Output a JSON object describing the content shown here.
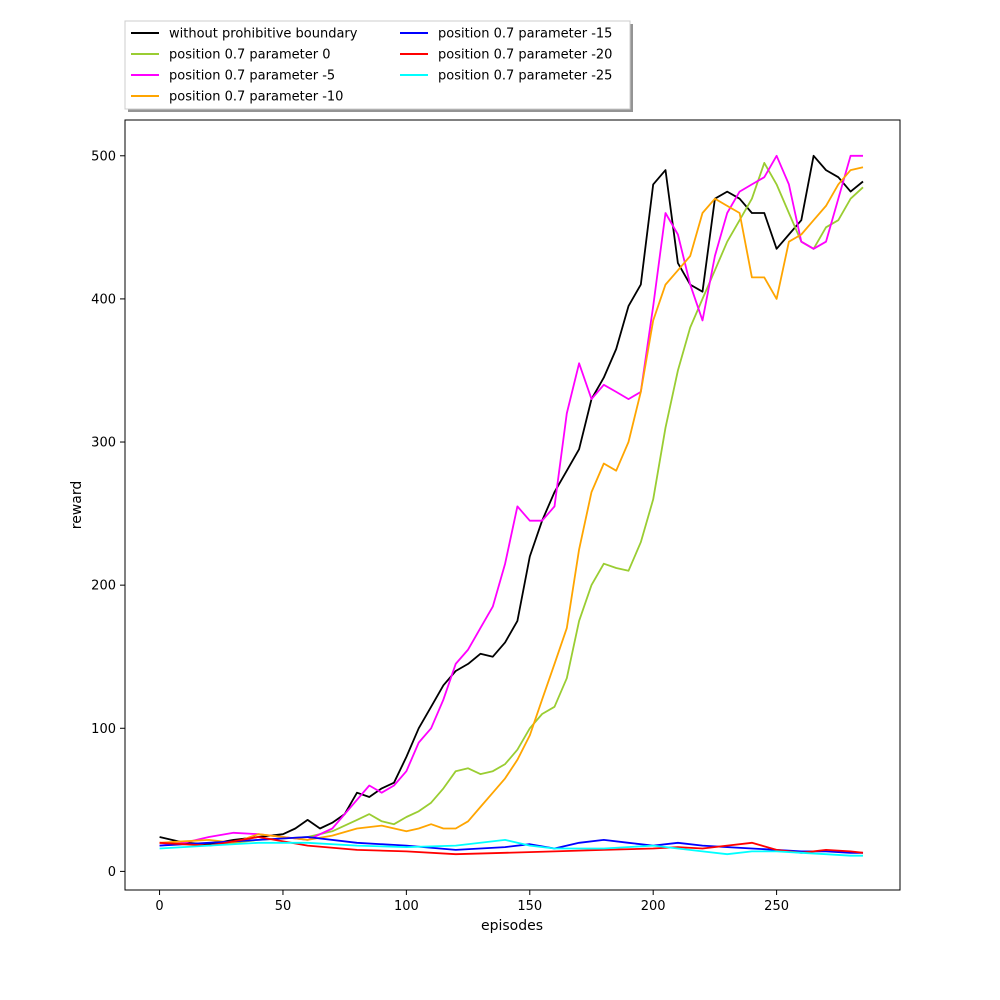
{
  "chart_data": {
    "type": "line",
    "title": "",
    "xlabel": "episodes",
    "ylabel": "reward",
    "xlim": [
      -14,
      300
    ],
    "ylim": [
      -13,
      525
    ],
    "xticks": [
      0,
      50,
      100,
      150,
      200,
      250
    ],
    "yticks": [
      0,
      100,
      200,
      300,
      400,
      500
    ],
    "grid": false,
    "legend_position": "above-top-left, 2 columns",
    "series": [
      {
        "name": "without prohibitive boundary",
        "color": "#000000",
        "x": [
          0,
          10,
          20,
          30,
          40,
          50,
          55,
          60,
          65,
          70,
          75,
          80,
          85,
          90,
          95,
          100,
          105,
          110,
          115,
          120,
          125,
          130,
          135,
          140,
          145,
          150,
          155,
          160,
          165,
          170,
          175,
          180,
          185,
          190,
          195,
          200,
          205,
          210,
          215,
          220,
          225,
          230,
          235,
          240,
          245,
          250,
          255,
          260,
          265,
          270,
          275,
          280,
          285
        ],
        "y": [
          24,
          20,
          19,
          22,
          24,
          26,
          30,
          36,
          30,
          34,
          40,
          55,
          52,
          58,
          62,
          80,
          100,
          115,
          130,
          140,
          145,
          152,
          150,
          160,
          175,
          220,
          245,
          265,
          280,
          295,
          330,
          345,
          365,
          395,
          410,
          480,
          490,
          425,
          410,
          405,
          470,
          475,
          470,
          460,
          460,
          435,
          445,
          455,
          500,
          490,
          485,
          475,
          482
        ]
      },
      {
        "name": "position 0.7 parameter 0",
        "color": "#9acd32",
        "x": [
          0,
          10,
          20,
          30,
          40,
          50,
          60,
          70,
          80,
          85,
          90,
          95,
          100,
          105,
          110,
          115,
          120,
          125,
          130,
          135,
          140,
          145,
          150,
          155,
          160,
          165,
          170,
          175,
          180,
          185,
          190,
          195,
          200,
          205,
          210,
          215,
          220,
          225,
          230,
          235,
          240,
          245,
          250,
          255,
          260,
          265,
          270,
          275,
          280,
          285
        ],
        "y": [
          20,
          19,
          18,
          20,
          22,
          23,
          24,
          28,
          36,
          40,
          35,
          33,
          38,
          42,
          48,
          58,
          70,
          72,
          68,
          70,
          75,
          85,
          100,
          110,
          115,
          135,
          175,
          200,
          215,
          212,
          210,
          230,
          260,
          310,
          350,
          380,
          400,
          420,
          440,
          455,
          470,
          495,
          480,
          460,
          440,
          435,
          450,
          455,
          470,
          478
        ]
      },
      {
        "name": "position 0.7 parameter -5",
        "color": "#ff00ff",
        "x": [
          0,
          10,
          20,
          30,
          40,
          50,
          60,
          70,
          80,
          85,
          90,
          95,
          100,
          105,
          110,
          115,
          120,
          125,
          130,
          135,
          140,
          145,
          150,
          155,
          160,
          165,
          170,
          175,
          180,
          185,
          190,
          195,
          200,
          205,
          210,
          215,
          220,
          225,
          230,
          235,
          240,
          245,
          250,
          255,
          260,
          265,
          270,
          275,
          280,
          285
        ],
        "y": [
          18,
          20,
          24,
          27,
          26,
          24,
          22,
          30,
          50,
          60,
          55,
          60,
          70,
          90,
          100,
          120,
          145,
          155,
          170,
          185,
          215,
          255,
          245,
          245,
          255,
          320,
          355,
          330,
          340,
          335,
          330,
          335,
          395,
          460,
          445,
          410,
          385,
          430,
          460,
          475,
          480,
          485,
          500,
          480,
          440,
          435,
          440,
          470,
          500,
          500
        ]
      },
      {
        "name": "position 0.7 parameter -10",
        "color": "#ffa500",
        "x": [
          0,
          10,
          20,
          30,
          40,
          50,
          60,
          70,
          80,
          90,
          100,
          105,
          110,
          115,
          120,
          125,
          130,
          135,
          140,
          145,
          150,
          155,
          160,
          165,
          170,
          175,
          180,
          185,
          190,
          195,
          200,
          205,
          210,
          215,
          220,
          225,
          230,
          235,
          240,
          245,
          250,
          255,
          260,
          265,
          270,
          275,
          280,
          285
        ],
        "y": [
          20,
          21,
          22,
          20,
          26,
          24,
          22,
          25,
          30,
          32,
          28,
          30,
          33,
          30,
          30,
          35,
          45,
          55,
          65,
          78,
          95,
          120,
          145,
          170,
          225,
          265,
          285,
          280,
          300,
          335,
          385,
          410,
          420,
          430,
          460,
          470,
          465,
          460,
          415,
          415,
          400,
          440,
          445,
          455,
          465,
          480,
          490,
          492
        ]
      },
      {
        "name": "position 0.7 parameter -15",
        "color": "#0000ff",
        "x": [
          0,
          20,
          40,
          60,
          80,
          100,
          120,
          140,
          150,
          160,
          170,
          180,
          190,
          200,
          210,
          220,
          230,
          240,
          250,
          260,
          270,
          280,
          285
        ],
        "y": [
          18,
          20,
          22,
          24,
          20,
          18,
          15,
          17,
          19,
          16,
          20,
          22,
          20,
          18,
          20,
          18,
          17,
          16,
          15,
          14,
          14,
          13,
          13
        ]
      },
      {
        "name": "position 0.7 parameter -20",
        "color": "#ff0000",
        "x": [
          0,
          20,
          40,
          60,
          80,
          100,
          120,
          140,
          160,
          180,
          200,
          210,
          220,
          230,
          240,
          250,
          260,
          270,
          280,
          285
        ],
        "y": [
          20,
          18,
          24,
          18,
          15,
          14,
          12,
          13,
          14,
          15,
          16,
          17,
          16,
          18,
          20,
          15,
          13,
          15,
          14,
          13
        ]
      },
      {
        "name": "position 0.7 parameter -25",
        "color": "#00ffff",
        "x": [
          0,
          20,
          40,
          60,
          80,
          100,
          120,
          140,
          150,
          160,
          180,
          200,
          210,
          220,
          230,
          240,
          250,
          260,
          270,
          280,
          285
        ],
        "y": [
          16,
          18,
          20,
          20,
          18,
          17,
          18,
          22,
          18,
          16,
          16,
          18,
          16,
          14,
          12,
          14,
          14,
          13,
          12,
          11,
          11
        ]
      }
    ]
  }
}
